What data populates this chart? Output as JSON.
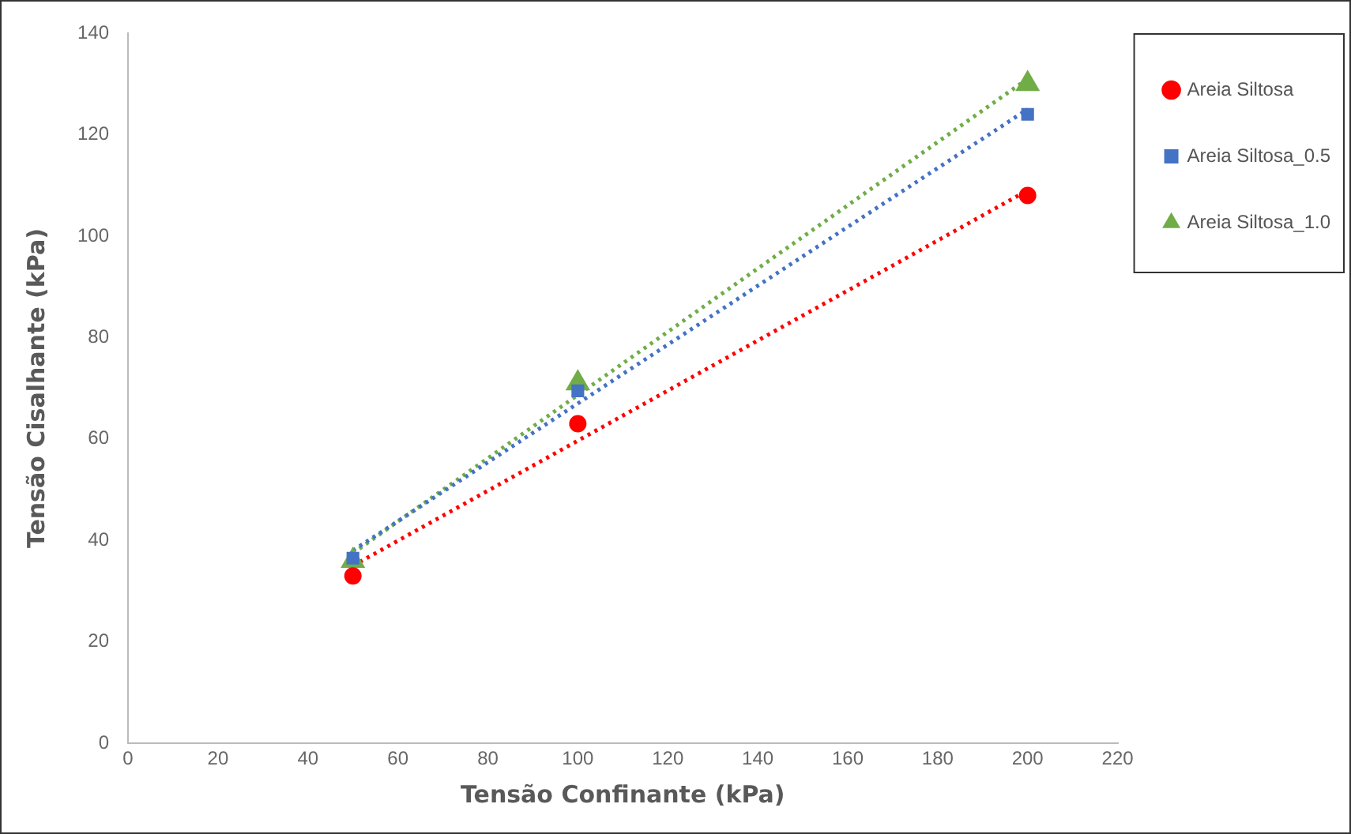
{
  "chart_data": {
    "type": "scatter",
    "xlabel": "Tensão Confinante (kPa)",
    "ylabel": "Tensão Cisalhante (kPa)",
    "xlim": [
      0,
      220
    ],
    "xticks": [
      0,
      20,
      40,
      60,
      80,
      100,
      120,
      140,
      160,
      180,
      200,
      220
    ],
    "ylim": [
      0,
      140
    ],
    "yticks": [
      0,
      20,
      40,
      60,
      80,
      100,
      120,
      140
    ],
    "grid": false,
    "legend": "top right",
    "series": [
      {
        "name": "Areia Siltosa",
        "color": "#ff0000",
        "marker": "circle",
        "x": [
          50,
          100,
          200
        ],
        "values": [
          33,
          63,
          108
        ]
      },
      {
        "name": "Areia Siltosa_0.5",
        "color": "#4472c4",
        "marker": "square",
        "x": [
          50,
          100,
          200
        ],
        "values": [
          36.5,
          69.5,
          124
        ]
      },
      {
        "name": "Areia Siltosa_1.0",
        "color": "#70ad47",
        "marker": "triangle",
        "x": [
          50,
          100,
          200
        ],
        "values": [
          36,
          71,
          130
        ]
      },
      {
        "type": "line",
        "color": "#ff0000",
        "marker": "none",
        "line_style": "dotted",
        "x": [
          50,
          200
        ],
        "values": [
          35,
          109
        ]
      },
      {
        "type": "line",
        "color": "#4472c4",
        "marker": "none",
        "line_style": "dotted",
        "x": [
          50,
          200
        ],
        "values": [
          38,
          125
        ]
      },
      {
        "type": "line",
        "color": "#70ad47",
        "marker": "none",
        "line_style": "dotted",
        "x": [
          50,
          200
        ],
        "values": [
          37.5,
          131
        ]
      }
    ]
  }
}
